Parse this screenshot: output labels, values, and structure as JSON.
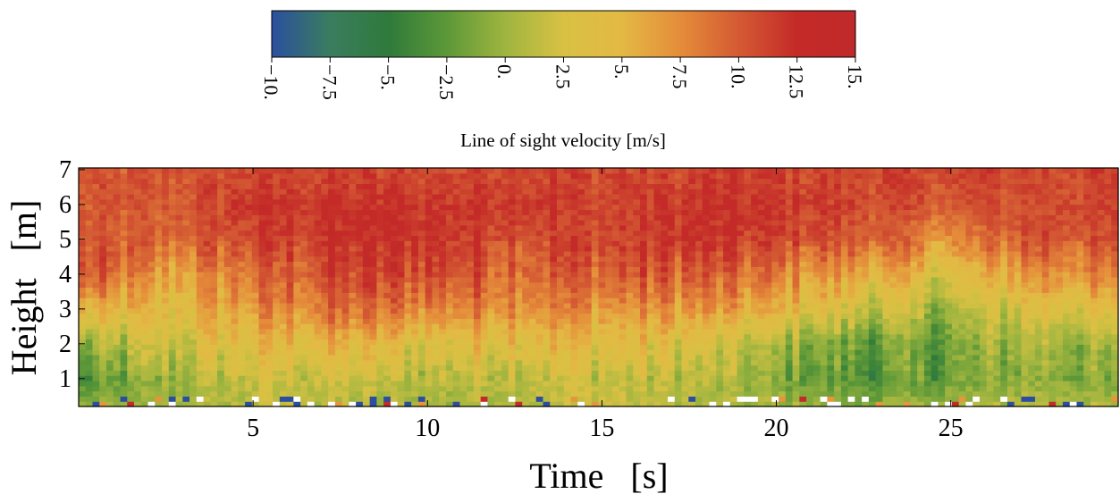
{
  "chart_data": {
    "type": "heatmap",
    "title": "",
    "xlabel": "Time   [s]",
    "ylabel": "Height   [m]",
    "xlim": [
      0,
      29.8
    ],
    "ylim": [
      0.2,
      7.05
    ],
    "xticks": [
      5,
      10,
      15,
      20,
      25
    ],
    "xtick_labels": [
      "5",
      "10",
      "15",
      "20",
      "25"
    ],
    "yticks": [
      1,
      2,
      3,
      4,
      5,
      6,
      7
    ],
    "ytick_labels": [
      "1",
      "2",
      "3",
      "4",
      "5",
      "6",
      "7"
    ],
    "colorbar": {
      "label": "Line of sight velocity   [m/s]",
      "range": [
        -10,
        15
      ],
      "ticks": [
        -10,
        -7.5,
        -5,
        -2.5,
        0,
        2.5,
        5,
        7.5,
        10,
        12.5,
        15
      ],
      "tick_labels": [
        "−10.",
        "−7.5",
        "−5.",
        "−2.5",
        "0.",
        "2.5",
        "5.",
        "7.5",
        "10.",
        "12.5",
        "15."
      ],
      "colors": [
        "#2b4f9e",
        "#3a7d5f",
        "#2f7a3b",
        "#5c9838",
        "#9fb53f",
        "#d8c143",
        "#e3b944",
        "#e58c3a",
        "#d45a33",
        "#c42a28",
        "#c02a2a"
      ]
    },
    "grid": false,
    "legend": "none",
    "sampled_values": {
      "time_s": [
        0,
        2.5,
        5,
        7.5,
        10,
        12.5,
        15,
        17.5,
        20,
        22.5,
        25,
        27.5,
        29.8
      ],
      "rows": [
        {
          "height_m": 0.3,
          "velocity_ms": [
            -1,
            0,
            1,
            1,
            0,
            1,
            2,
            1,
            0,
            -1,
            0,
            1,
            0
          ]
        },
        {
          "height_m": 1,
          "velocity_ms": [
            -4,
            0,
            2,
            2,
            1,
            2,
            2,
            1,
            -1,
            -3,
            -2,
            0,
            -2
          ]
        },
        {
          "height_m": 2,
          "velocity_ms": [
            -1,
            2,
            4,
            5,
            3,
            5,
            4,
            3,
            0,
            -2,
            -2,
            1,
            -1
          ]
        },
        {
          "height_m": 3,
          "velocity_ms": [
            5,
            4,
            7,
            9,
            8,
            8,
            7,
            7,
            5,
            2,
            0,
            4,
            3
          ]
        },
        {
          "height_m": 4,
          "velocity_ms": [
            10,
            6,
            9,
            11,
            11,
            10,
            10,
            10,
            8,
            6,
            3,
            8,
            7
          ]
        },
        {
          "height_m": 5,
          "velocity_ms": [
            10,
            9,
            11,
            12,
            12,
            11,
            11,
            12,
            11,
            10,
            7,
            11,
            10
          ]
        },
        {
          "height_m": 6,
          "velocity_ms": [
            10,
            10,
            12,
            12,
            12,
            12,
            11,
            12,
            12,
            11,
            10,
            11,
            11
          ]
        },
        {
          "height_m": 7,
          "velocity_ms": [
            10,
            10,
            11,
            11,
            11,
            11,
            11,
            11,
            11,
            11,
            11,
            11,
            11
          ]
        }
      ]
    }
  }
}
